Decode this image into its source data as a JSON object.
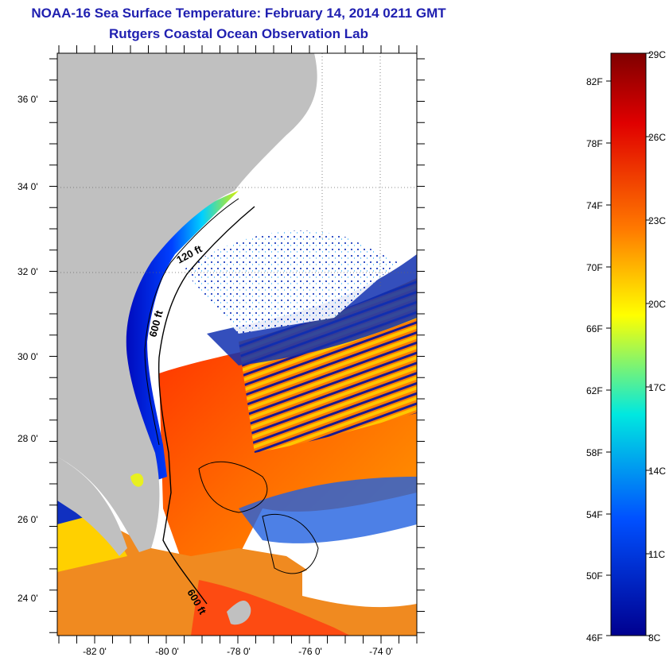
{
  "title": {
    "line1": "NOAA-16 Sea Surface Temperature:  February 14, 2014 0211 GMT",
    "line2": "Rutgers Coastal Ocean Observation Lab"
  },
  "map": {
    "lat_labels": [
      "36 0'",
      "34 0'",
      "32 0'",
      "30 0'",
      "28 0'",
      "26 0'",
      "24 0'"
    ],
    "lon_labels": [
      "-82 0'",
      "-80 0'",
      "-78 0'",
      "-76 0'",
      "-74 0'"
    ],
    "contour_labels": [
      "120 ft",
      "600 ft",
      "600 ft"
    ]
  },
  "colorbar": {
    "celsius": [
      "29C",
      "26C",
      "23C",
      "20C",
      "17C",
      "14C",
      "11C",
      "8C"
    ],
    "fahrenheit": [
      "82F",
      "78F",
      "74F",
      "70F",
      "66F",
      "62F",
      "58F",
      "54F",
      "50F",
      "46F"
    ],
    "colors": [
      "#7f0000",
      "#ff0000",
      "#ff8c00",
      "#ffff00",
      "#00e5ff",
      "#0060ff",
      "#00008f"
    ]
  }
}
